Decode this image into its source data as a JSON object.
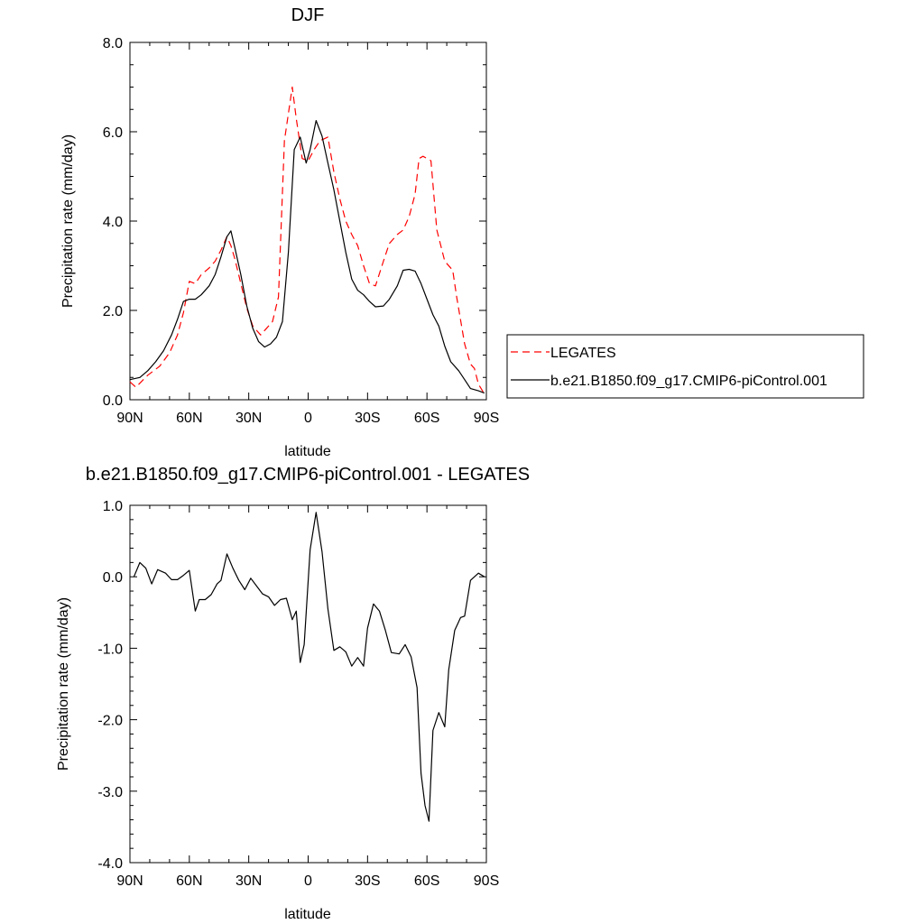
{
  "chart_data": [
    {
      "type": "line",
      "title": "DJF",
      "xlabel": "latitude",
      "ylabel": "Precipitation rate (mm/day)",
      "xlim": [
        90,
        -90
      ],
      "ylim": [
        0,
        8
      ],
      "x_ticks": [
        {
          "value": 90,
          "label": "90N"
        },
        {
          "value": 60,
          "label": "60N"
        },
        {
          "value": 30,
          "label": "30N"
        },
        {
          "value": 0,
          "label": "0"
        },
        {
          "value": -30,
          "label": "30S"
        },
        {
          "value": -60,
          "label": "60S"
        },
        {
          "value": -90,
          "label": "90S"
        }
      ],
      "y_ticks": [
        {
          "value": 0,
          "label": "0.0"
        },
        {
          "value": 2,
          "label": "2.0"
        },
        {
          "value": 4,
          "label": "4.0"
        },
        {
          "value": 6,
          "label": "6.0"
        },
        {
          "value": 8,
          "label": "8.0"
        }
      ],
      "grid": false,
      "legend_position": "right",
      "series": [
        {
          "name": "LEGATES",
          "color": "#ff0000",
          "dash": "dashed",
          "x": [
            90,
            87,
            81,
            75,
            70,
            66,
            63,
            60,
            57,
            54,
            50,
            47,
            44,
            41,
            39,
            37,
            34,
            31,
            28,
            24,
            21,
            18,
            15,
            12,
            8,
            6,
            3,
            0,
            -3,
            -6,
            -10,
            -13,
            -16,
            -19,
            -22,
            -25,
            -28,
            -31,
            -34,
            -38,
            -41,
            -45,
            -48,
            -51,
            -54,
            -56,
            -58,
            -62,
            -65,
            -69,
            -73,
            -75,
            -79,
            -82,
            -84,
            -86,
            -89
          ],
          "values": [
            0.4,
            0.28,
            0.55,
            0.75,
            1.05,
            1.45,
            1.95,
            2.65,
            2.6,
            2.8,
            2.95,
            3.1,
            3.35,
            3.65,
            3.45,
            3.15,
            2.6,
            2.05,
            1.65,
            1.45,
            1.6,
            1.75,
            2.3,
            5.8,
            7.0,
            6.3,
            5.4,
            5.35,
            5.6,
            5.8,
            5.88,
            5.1,
            4.5,
            4.0,
            3.7,
            3.45,
            3.0,
            2.6,
            2.55,
            3.1,
            3.5,
            3.7,
            3.8,
            4.1,
            4.6,
            5.4,
            5.45,
            5.35,
            3.8,
            3.1,
            2.9,
            2.3,
            1.25,
            0.8,
            0.7,
            0.35,
            0.13
          ]
        },
        {
          "name": "b.e21.B1850.f09_g17.CMIP6-piControl.001",
          "color": "#000000",
          "dash": "solid",
          "x": [
            90,
            85,
            81,
            77,
            73,
            69,
            66,
            63,
            60,
            57,
            54,
            50,
            47,
            44,
            41,
            39,
            37,
            34,
            31,
            28,
            25,
            22,
            19,
            16,
            13,
            10,
            7,
            4,
            1,
            -1,
            -4,
            -7,
            -10,
            -13,
            -16,
            -19,
            -22,
            -25,
            -28,
            -31,
            -34,
            -38,
            -41,
            -45,
            -48,
            -51,
            -54,
            -57,
            -60,
            -63,
            -66,
            -69,
            -72,
            -76,
            -79,
            -82,
            -86,
            -89
          ],
          "values": [
            0.45,
            0.5,
            0.65,
            0.85,
            1.1,
            1.45,
            1.8,
            2.2,
            2.25,
            2.25,
            2.35,
            2.55,
            2.8,
            3.2,
            3.65,
            3.78,
            3.4,
            2.8,
            2.1,
            1.6,
            1.3,
            1.18,
            1.25,
            1.4,
            1.75,
            3.3,
            5.6,
            5.88,
            5.3,
            5.6,
            6.25,
            5.9,
            5.3,
            4.7,
            4.0,
            3.3,
            2.7,
            2.45,
            2.35,
            2.2,
            2.08,
            2.1,
            2.25,
            2.55,
            2.9,
            2.92,
            2.88,
            2.6,
            2.25,
            1.9,
            1.65,
            1.2,
            0.85,
            0.65,
            0.45,
            0.25,
            0.2,
            0.15
          ]
        }
      ]
    },
    {
      "type": "line",
      "title": "b.e21.B1850.f09_g17.CMIP6-piControl.001 - LEGATES",
      "xlabel": "latitude",
      "ylabel": "Precipitation rate (mm/day)",
      "xlim": [
        90,
        -90
      ],
      "ylim": [
        -4,
        1
      ],
      "x_ticks": [
        {
          "value": 90,
          "label": "90N"
        },
        {
          "value": 60,
          "label": "60N"
        },
        {
          "value": 30,
          "label": "30N"
        },
        {
          "value": 0,
          "label": "0"
        },
        {
          "value": -30,
          "label": "30S"
        },
        {
          "value": -60,
          "label": "60S"
        },
        {
          "value": -90,
          "label": "90S"
        }
      ],
      "y_ticks": [
        {
          "value": -4,
          "label": "-4.0"
        },
        {
          "value": -3,
          "label": "-3.0"
        },
        {
          "value": -2,
          "label": "-2.0"
        },
        {
          "value": -1,
          "label": "-1.0"
        },
        {
          "value": 0,
          "label": "0.0"
        },
        {
          "value": 1,
          "label": "1.0"
        }
      ],
      "grid": false,
      "series": [
        {
          "color": "#000000",
          "dash": "solid",
          "x": [
            88,
            85,
            82,
            79,
            76,
            72,
            69,
            66,
            63,
            60,
            57,
            55,
            52,
            49,
            46,
            44,
            41,
            38,
            35,
            32,
            29,
            26,
            23,
            20,
            17,
            14,
            11,
            8,
            6,
            4,
            2,
            -1,
            -4,
            -7,
            -10,
            -13,
            -16,
            -19,
            -22,
            -25,
            -28,
            -30,
            -33,
            -36,
            -39,
            -42,
            -46,
            -49,
            -52,
            -55,
            -57,
            -59,
            -61,
            -63,
            -66,
            -69,
            -71,
            -74,
            -77,
            -79,
            -82,
            -86,
            -89
          ],
          "values": [
            0.0,
            0.2,
            0.12,
            -0.1,
            0.1,
            0.05,
            -0.04,
            -0.04,
            0.02,
            0.09,
            -0.48,
            -0.32,
            -0.32,
            -0.25,
            -0.1,
            -0.05,
            0.32,
            0.12,
            -0.05,
            -0.18,
            -0.02,
            -0.13,
            -0.24,
            -0.28,
            -0.4,
            -0.32,
            -0.3,
            -0.6,
            -0.48,
            -1.2,
            -0.95,
            0.38,
            0.9,
            0.35,
            -0.45,
            -1.03,
            -0.98,
            -1.05,
            -1.25,
            -1.13,
            -1.25,
            -0.72,
            -0.38,
            -0.48,
            -0.75,
            -1.06,
            -1.08,
            -0.95,
            -1.12,
            -1.55,
            -2.75,
            -3.2,
            -3.42,
            -2.15,
            -1.9,
            -2.1,
            -1.3,
            -0.75,
            -0.57,
            -0.55,
            -0.05,
            0.05,
            0.0
          ]
        }
      ]
    }
  ]
}
